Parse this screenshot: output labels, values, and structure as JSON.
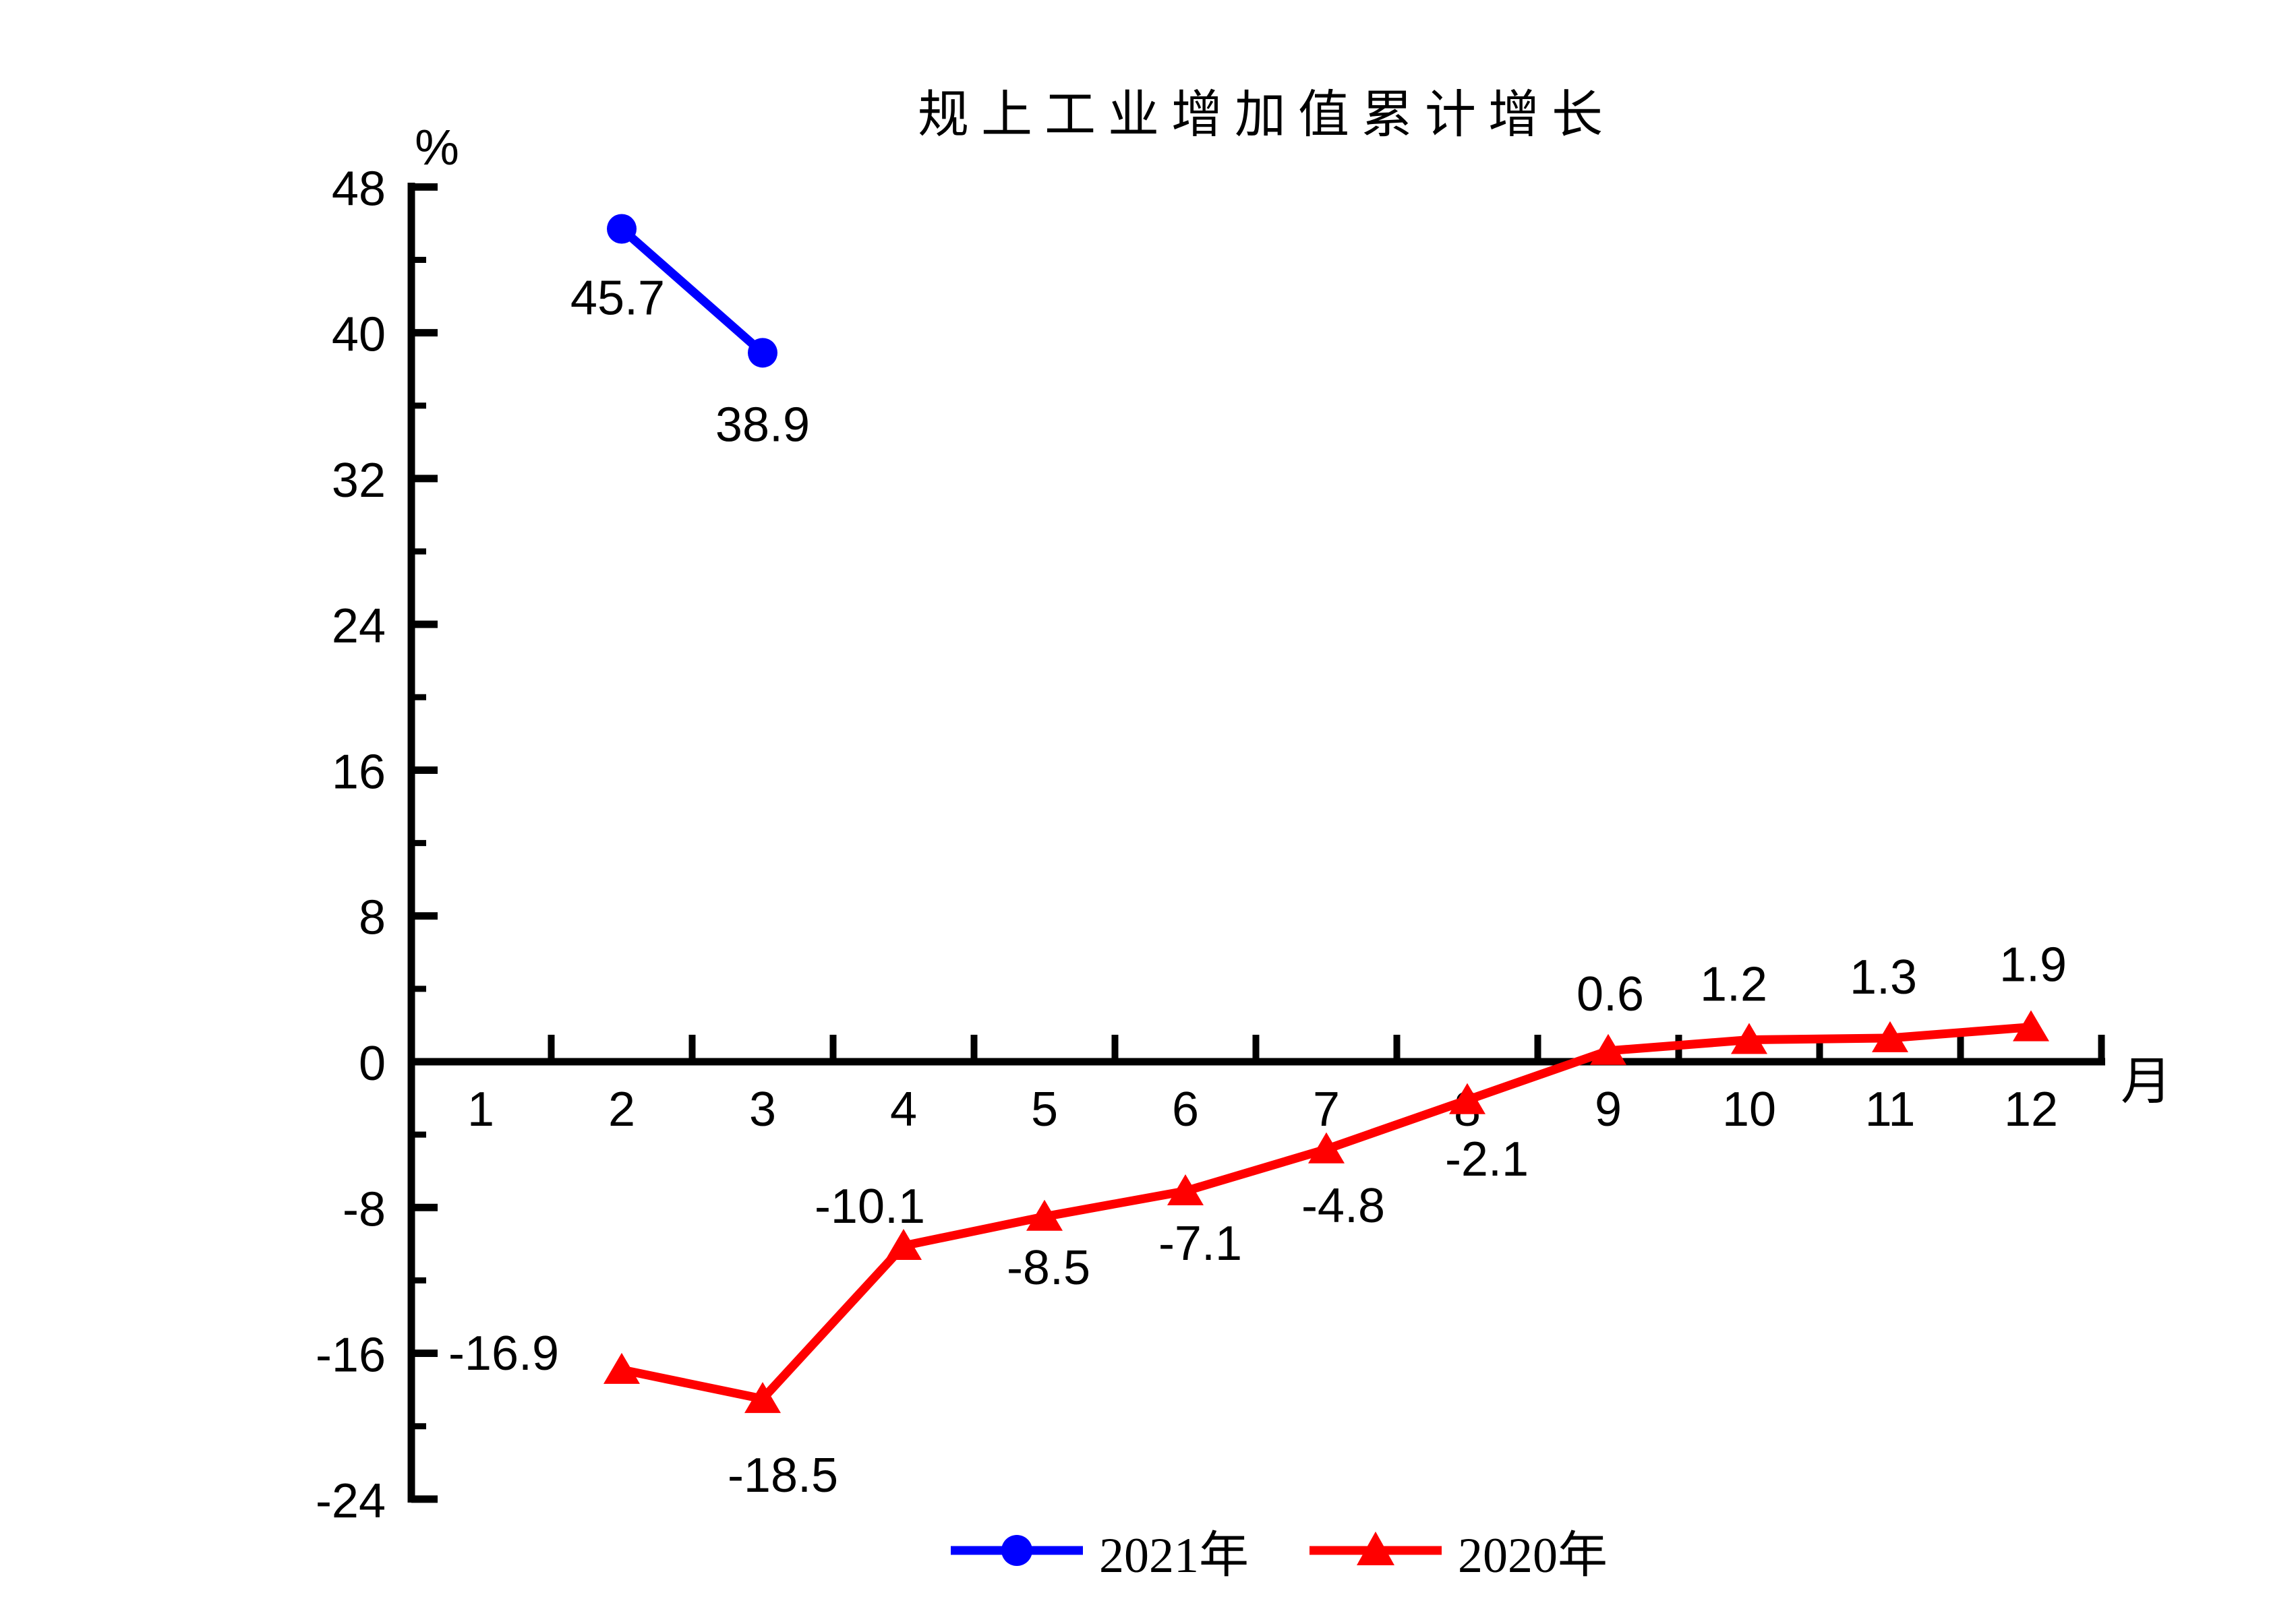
{
  "chart_data": {
    "type": "line",
    "title": "规上工业增加值累计增长",
    "ylabel": "%",
    "xlabel": "月",
    "x_ticks": [
      1,
      2,
      3,
      4,
      5,
      6,
      7,
      8,
      9,
      10,
      11,
      12
    ],
    "ylim": [
      -24,
      48
    ],
    "y_major_ticks": [
      48,
      40,
      32,
      24,
      16,
      8,
      0,
      -8,
      -16,
      -24
    ],
    "y_minor_step": 4,
    "grid": false,
    "legend_position": "bottom",
    "axis_color": "#000000",
    "series": [
      {
        "name": "2021年",
        "color": "#0000ff",
        "marker": "circle",
        "x": [
          2,
          3
        ],
        "values": [
          45.7,
          38.9
        ],
        "labels": [
          "45.7",
          "38.9"
        ]
      },
      {
        "name": "2020年",
        "color": "#ff0000",
        "marker": "triangle",
        "x": [
          2,
          3,
          4,
          5,
          6,
          7,
          8,
          9,
          10,
          11,
          12
        ],
        "values": [
          -16.9,
          -18.5,
          -10.1,
          -8.5,
          -7.1,
          -4.8,
          -2.1,
          0.6,
          1.2,
          1.3,
          1.9
        ],
        "labels": [
          "-16.9",
          "-18.5",
          "-10.1",
          "-8.5",
          "-7.1",
          "-4.8",
          "-2.1",
          "0.6",
          "1.2",
          "1.3",
          "1.9"
        ]
      }
    ]
  }
}
